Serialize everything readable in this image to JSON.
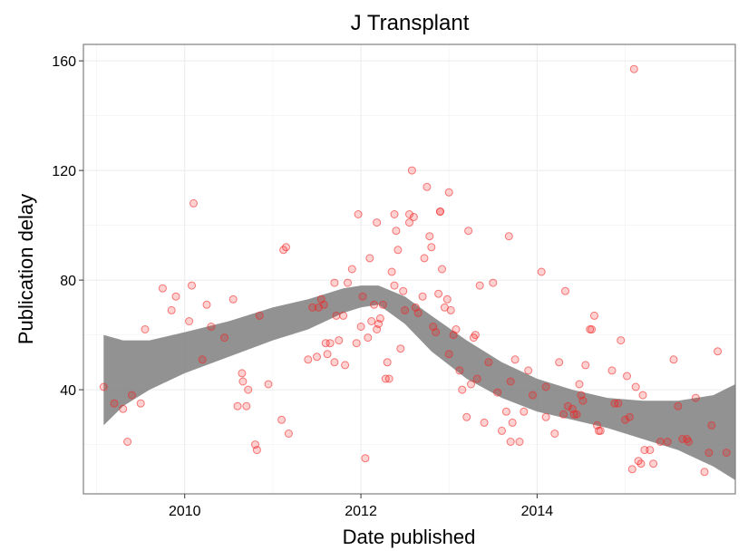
{
  "chart_data": {
    "type": "scatter",
    "title": "J Transplant",
    "xlabel": "Date published",
    "ylabel": "Publication delay",
    "xlim": [
      2008.85,
      2015.6
    ],
    "ylim": [
      2,
      166
    ],
    "x_ticks": [
      2010,
      2012,
      2014
    ],
    "x_tick_labels": [
      "2010",
      "2012",
      "2014"
    ],
    "y_ticks": [
      40,
      80,
      120,
      160
    ],
    "y_tick_labels": [
      "40",
      "80",
      "120",
      "160"
    ],
    "grid": true,
    "legend": "none",
    "point_color": "#ff0000",
    "band_color": "#7f7f7f",
    "points": [
      [
        2009.08,
        41
      ],
      [
        2009.2,
        35
      ],
      [
        2009.3,
        33
      ],
      [
        2009.35,
        21
      ],
      [
        2009.4,
        38
      ],
      [
        2009.5,
        35
      ],
      [
        2009.55,
        62
      ],
      [
        2009.75,
        77
      ],
      [
        2009.85,
        69
      ],
      [
        2009.9,
        74
      ],
      [
        2010.05,
        65
      ],
      [
        2010.08,
        78
      ],
      [
        2010.1,
        108
      ],
      [
        2010.2,
        51
      ],
      [
        2010.25,
        71
      ],
      [
        2010.3,
        63
      ],
      [
        2010.45,
        59
      ],
      [
        2010.55,
        73
      ],
      [
        2010.6,
        34
      ],
      [
        2010.65,
        46
      ],
      [
        2010.66,
        43
      ],
      [
        2010.7,
        34
      ],
      [
        2010.72,
        40
      ],
      [
        2010.8,
        20
      ],
      [
        2010.82,
        18
      ],
      [
        2010.85,
        67
      ],
      [
        2010.95,
        42
      ],
      [
        2011.1,
        29
      ],
      [
        2011.12,
        91
      ],
      [
        2011.15,
        92
      ],
      [
        2011.18,
        24
      ],
      [
        2011.4,
        51
      ],
      [
        2011.45,
        70
      ],
      [
        2011.5,
        52
      ],
      [
        2011.52,
        70
      ],
      [
        2011.55,
        73
      ],
      [
        2011.58,
        71
      ],
      [
        2011.6,
        57
      ],
      [
        2011.62,
        53
      ],
      [
        2011.65,
        57
      ],
      [
        2011.7,
        79
      ],
      [
        2011.7,
        50
      ],
      [
        2011.72,
        67
      ],
      [
        2011.75,
        58
      ],
      [
        2011.8,
        67
      ],
      [
        2011.82,
        49
      ],
      [
        2011.85,
        79
      ],
      [
        2011.9,
        84
      ],
      [
        2011.95,
        57
      ],
      [
        2011.97,
        104
      ],
      [
        2012.0,
        63
      ],
      [
        2012.02,
        74
      ],
      [
        2012.05,
        15
      ],
      [
        2012.08,
        59
      ],
      [
        2012.1,
        88
      ],
      [
        2012.12,
        65
      ],
      [
        2012.15,
        71
      ],
      [
        2012.18,
        101
      ],
      [
        2012.18,
        62
      ],
      [
        2012.2,
        64
      ],
      [
        2012.22,
        66
      ],
      [
        2012.25,
        71
      ],
      [
        2012.28,
        44
      ],
      [
        2012.3,
        50
      ],
      [
        2012.32,
        44
      ],
      [
        2012.35,
        83
      ],
      [
        2012.38,
        104
      ],
      [
        2012.38,
        78
      ],
      [
        2012.4,
        98
      ],
      [
        2012.42,
        91
      ],
      [
        2012.45,
        55
      ],
      [
        2012.48,
        76
      ],
      [
        2012.5,
        69
      ],
      [
        2012.55,
        104
      ],
      [
        2012.55,
        101
      ],
      [
        2012.58,
        120
      ],
      [
        2012.6,
        103
      ],
      [
        2012.62,
        70
      ],
      [
        2012.65,
        68
      ],
      [
        2012.7,
        74
      ],
      [
        2012.72,
        88
      ],
      [
        2012.75,
        114
      ],
      [
        2012.78,
        96
      ],
      [
        2012.8,
        92
      ],
      [
        2012.82,
        63
      ],
      [
        2012.85,
        61
      ],
      [
        2012.88,
        75
      ],
      [
        2012.9,
        105
      ],
      [
        2012.9,
        105
      ],
      [
        2012.92,
        84
      ],
      [
        2012.95,
        70
      ],
      [
        2012.98,
        73
      ],
      [
        2013.0,
        112
      ],
      [
        2013.0,
        53
      ],
      [
        2013.02,
        69
      ],
      [
        2013.05,
        60
      ],
      [
        2013.08,
        62
      ],
      [
        2013.12,
        47
      ],
      [
        2013.15,
        40
      ],
      [
        2013.2,
        30
      ],
      [
        2013.22,
        98
      ],
      [
        2013.25,
        42
      ],
      [
        2013.28,
        59
      ],
      [
        2013.3,
        60
      ],
      [
        2013.32,
        44
      ],
      [
        2013.35,
        78
      ],
      [
        2013.4,
        28
      ],
      [
        2013.45,
        50
      ],
      [
        2013.5,
        79
      ],
      [
        2013.55,
        39
      ],
      [
        2013.6,
        25
      ],
      [
        2013.65,
        32
      ],
      [
        2013.68,
        96
      ],
      [
        2013.7,
        21
      ],
      [
        2013.7,
        43
      ],
      [
        2013.72,
        28
      ],
      [
        2013.75,
        51
      ],
      [
        2013.8,
        21
      ],
      [
        2013.85,
        32
      ],
      [
        2013.9,
        47
      ],
      [
        2013.95,
        38
      ],
      [
        2014.05,
        83
      ],
      [
        2014.1,
        41
      ],
      [
        2014.1,
        30
      ],
      [
        2014.2,
        24
      ],
      [
        2014.25,
        50
      ],
      [
        2014.3,
        31
      ],
      [
        2014.32,
        76
      ],
      [
        2014.35,
        34
      ],
      [
        2014.4,
        33
      ],
      [
        2014.42,
        31
      ],
      [
        2014.45,
        31
      ],
      [
        2014.48,
        42
      ],
      [
        2014.5,
        38
      ],
      [
        2014.52,
        36
      ],
      [
        2014.55,
        49
      ],
      [
        2014.6,
        62
      ],
      [
        2014.62,
        62
      ],
      [
        2014.65,
        67
      ],
      [
        2014.68,
        27
      ],
      [
        2014.7,
        25
      ],
      [
        2014.72,
        25
      ],
      [
        2014.85,
        47
      ],
      [
        2014.88,
        35
      ],
      [
        2014.92,
        35
      ],
      [
        2014.95,
        58
      ],
      [
        2015.0,
        29
      ],
      [
        2015.02,
        45
      ],
      [
        2015.05,
        30
      ],
      [
        2015.08,
        11
      ],
      [
        2015.1,
        157
      ],
      [
        2015.12,
        41
      ],
      [
        2015.15,
        14
      ],
      [
        2015.18,
        13
      ],
      [
        2015.2,
        38
      ],
      [
        2015.22,
        18
      ],
      [
        2015.28,
        18
      ],
      [
        2015.32,
        13
      ],
      [
        2015.4,
        21
      ],
      [
        2015.48,
        21
      ],
      [
        2015.55,
        51
      ],
      [
        2015.6,
        34
      ],
      [
        2015.65,
        22
      ],
      [
        2015.7,
        22
      ],
      [
        2015.72,
        21
      ],
      [
        2015.8,
        37
      ],
      [
        2015.9,
        10
      ],
      [
        2015.95,
        17
      ],
      [
        2015.98,
        27
      ],
      [
        2016.05,
        54
      ],
      [
        2016.15,
        17
      ]
    ],
    "smooth_band": {
      "x": [
        2009.08,
        2009.3,
        2009.6,
        2010.0,
        2010.5,
        2011.0,
        2011.4,
        2011.8,
        2012.0,
        2012.2,
        2012.5,
        2012.8,
        2013.2,
        2013.6,
        2014.0,
        2014.4,
        2014.8,
        2015.2,
        2015.6,
        2016.0,
        2016.25
      ],
      "upper": [
        60,
        58,
        58,
        61,
        65,
        70,
        73,
        77,
        78,
        78,
        74,
        67,
        58,
        50,
        44,
        40,
        37,
        36,
        36,
        38,
        42
      ],
      "lower": [
        27,
        34,
        40,
        46,
        52,
        58,
        62,
        68,
        70,
        71,
        64,
        54,
        44,
        37,
        32,
        29,
        26,
        22,
        18,
        12,
        7
      ]
    }
  }
}
